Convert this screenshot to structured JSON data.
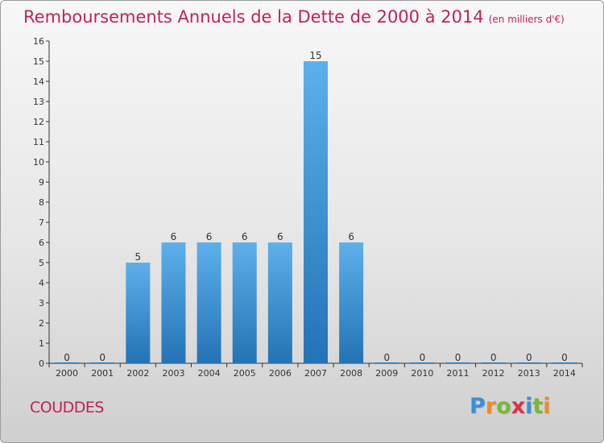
{
  "header": {
    "title": "Remboursements Annuels de la Dette de 2000 à 2014",
    "unit_note": "(en milliers d'€)"
  },
  "footer": {
    "commune": "COUDDES",
    "logo": [
      "P",
      "r",
      "o",
      "x",
      "i",
      "t",
      "i"
    ],
    "logo_colors": [
      "#3a8fd8",
      "#f28c1e",
      "#7ab833",
      "#d8344a",
      "#3a8fd8",
      "#7ab833",
      "#f28c1e"
    ]
  },
  "colors": {
    "bar_top": "#5db0ea",
    "bar_bottom": "#2373b5",
    "title": "#c2215a"
  },
  "chart_data": {
    "type": "bar",
    "categories": [
      "2000",
      "2001",
      "2002",
      "2003",
      "2004",
      "2005",
      "2006",
      "2007",
      "2008",
      "2009",
      "2010",
      "2011",
      "2012",
      "2013",
      "2014"
    ],
    "values": [
      0,
      0,
      5,
      6,
      6,
      6,
      6,
      15,
      6,
      0,
      0,
      0,
      0,
      0,
      0
    ],
    "data_labels": [
      "0",
      "0",
      "5",
      "6",
      "6",
      "6",
      "6",
      "15",
      "6",
      "0",
      "0",
      "0",
      "0",
      "0",
      "0"
    ],
    "yticks": [
      0,
      1,
      2,
      3,
      4,
      5,
      6,
      7,
      8,
      9,
      10,
      11,
      12,
      13,
      14,
      15,
      16
    ],
    "ylim": [
      0,
      16
    ],
    "grid": false,
    "title": "Remboursements Annuels de la Dette de 2000 à 2014",
    "xlabel": "",
    "ylabel": ""
  }
}
